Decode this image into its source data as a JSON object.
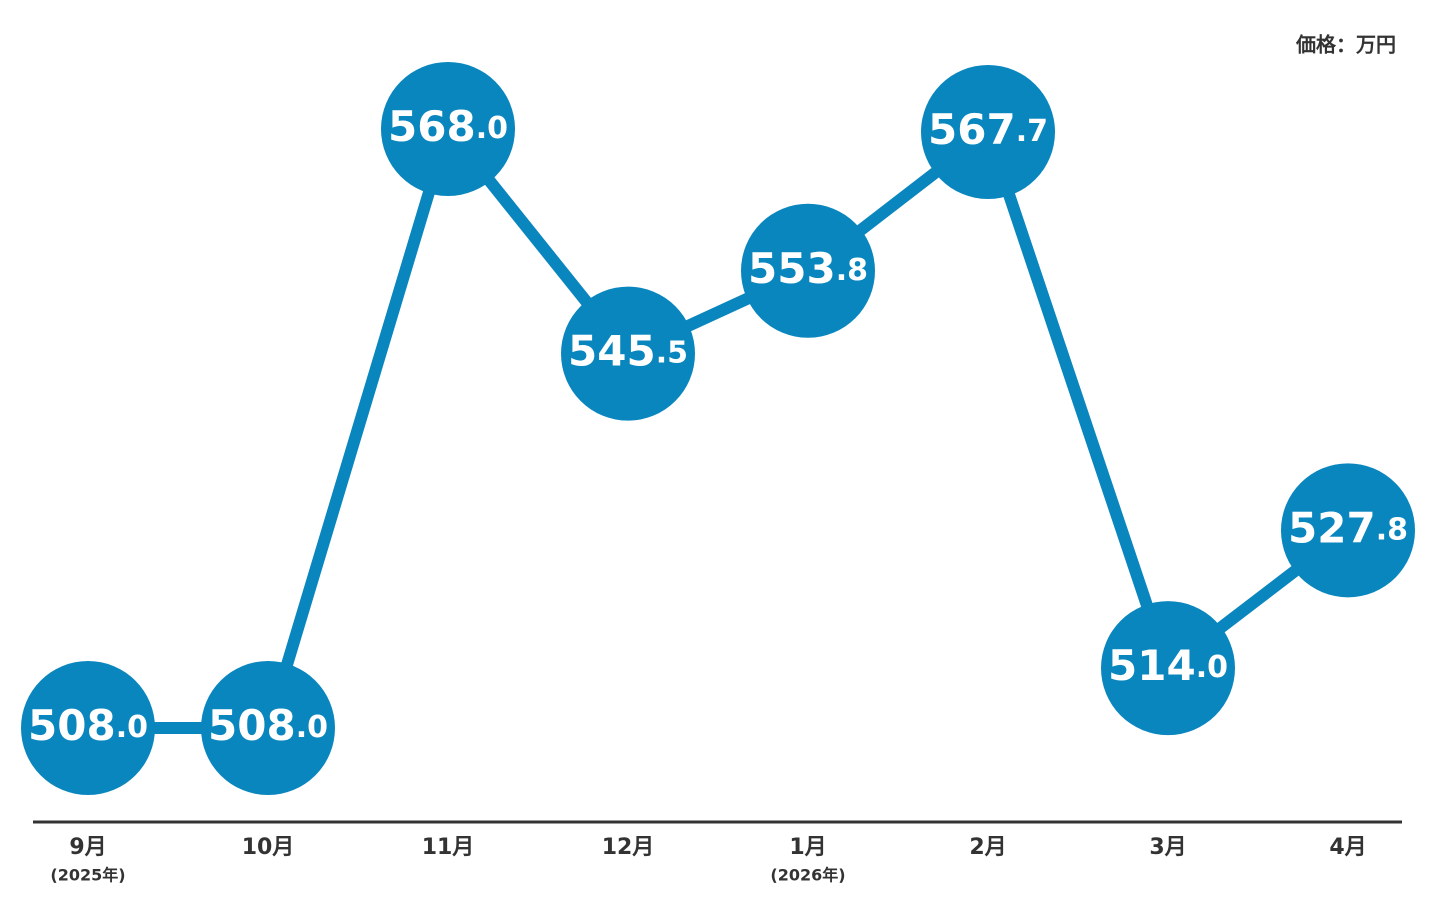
{
  "chart_data": {
    "type": "line",
    "unit_label": "価格：万円",
    "categories": [
      "9月",
      "10月",
      "11月",
      "12月",
      "1月",
      "2月",
      "3月",
      "4月"
    ],
    "category_notes": [
      "(2025年)",
      null,
      null,
      null,
      "(2026年)",
      null,
      null,
      null
    ],
    "values": [
      508.0,
      508.0,
      568.0,
      545.5,
      553.8,
      567.7,
      514.0,
      527.8
    ],
    "value_labels": [
      "508.0",
      "508.0",
      "568.0",
      "545.5",
      "553.8",
      "567.7",
      "514.0",
      "527.8"
    ],
    "color": "#0a86bf"
  }
}
